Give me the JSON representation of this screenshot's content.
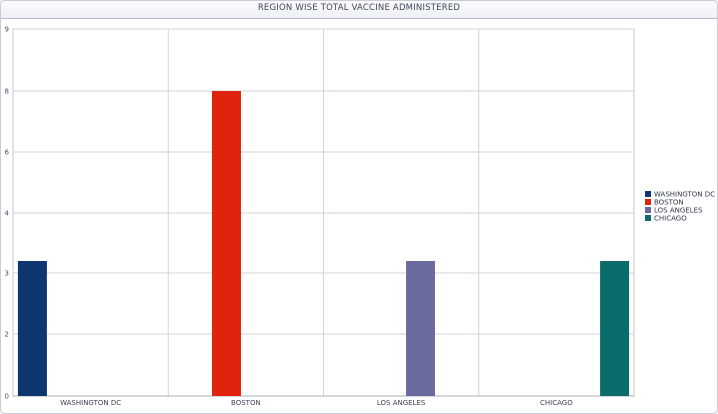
{
  "chart_data": {
    "type": "bar",
    "title": "REGION WISE TOTAL VACCINE ADMINISTERED",
    "xlabel": "",
    "ylabel": "",
    "categories": [
      "WASHINGTON DC",
      "BOSTON",
      "LOS ANGELES",
      "CHICAGO"
    ],
    "yticks": [
      "0",
      "2",
      "3",
      "4",
      "6",
      "8",
      "9"
    ],
    "series": [
      {
        "name": "WASHINGTON DC",
        "color": "#0d3670",
        "values": [
          3.2,
          null,
          null,
          null
        ]
      },
      {
        "name": "BOSTON",
        "color": "#e0230c",
        "values": [
          null,
          8.0,
          null,
          null
        ]
      },
      {
        "name": "LOS ANGELES",
        "color": "#6c6b9f",
        "values": [
          null,
          null,
          3.2,
          null
        ]
      },
      {
        "name": "CHICAGO",
        "color": "#0b6b6b",
        "values": [
          null,
          null,
          null,
          3.2
        ]
      }
    ],
    "ylim": [
      0,
      9
    ],
    "grid": true,
    "legend_position": "right"
  }
}
